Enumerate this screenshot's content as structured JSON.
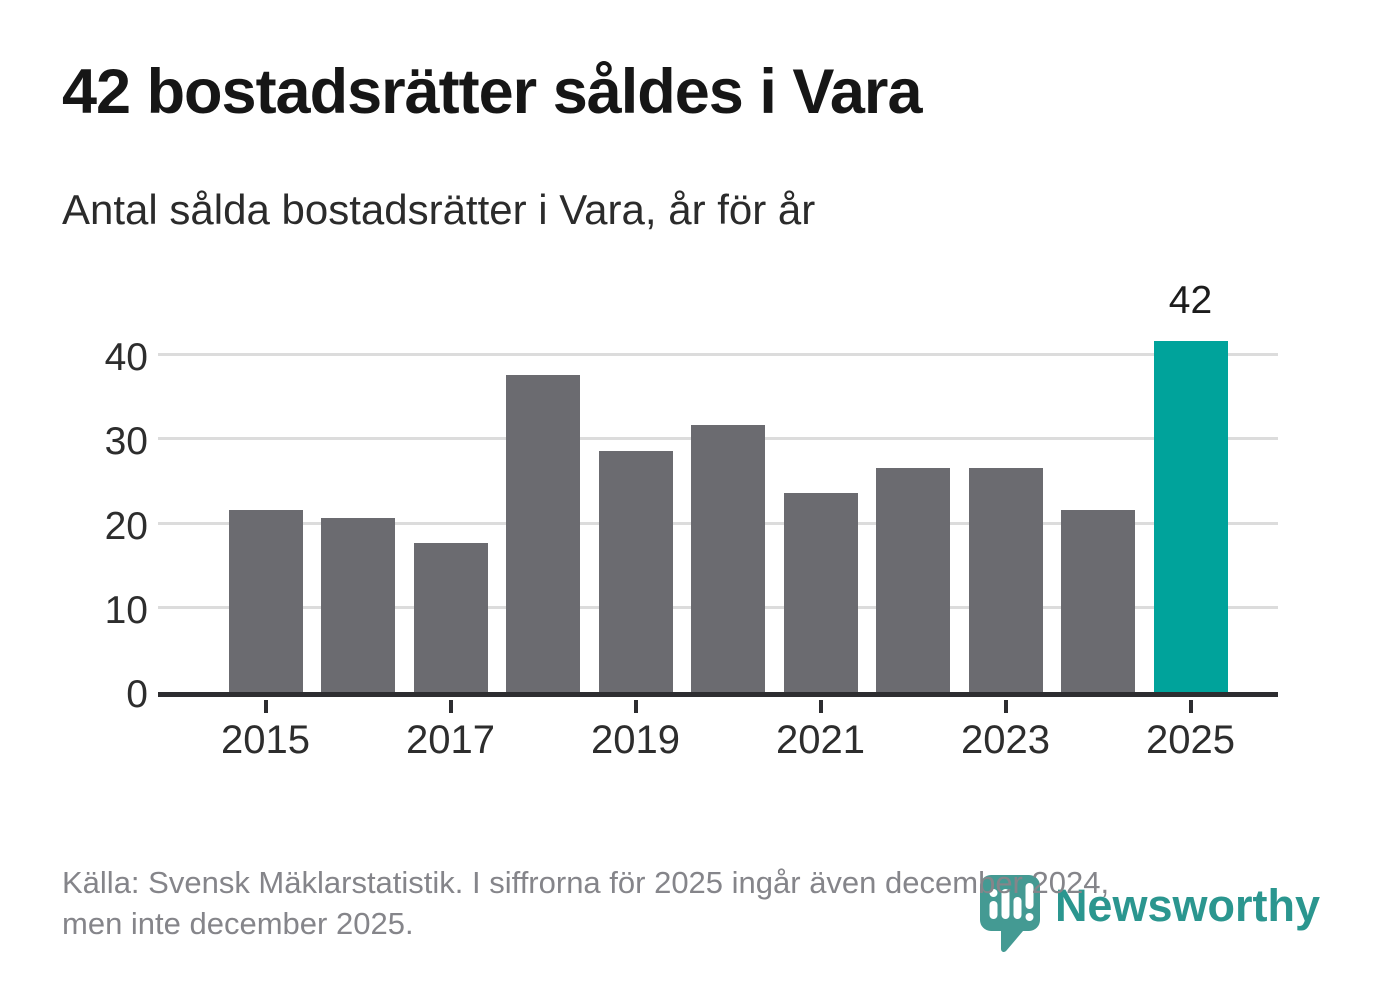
{
  "header": {
    "title": "42 bostadsrätter såldes i Vara",
    "subtitle": "Antal sålda bostadsrätter i Vara, år för år"
  },
  "chart_data": {
    "type": "bar",
    "categories": [
      "2015",
      "2016",
      "2017",
      "2018",
      "2019",
      "2020",
      "2021",
      "2022",
      "2023",
      "2024",
      "2025"
    ],
    "values": [
      22,
      21,
      18,
      38,
      29,
      32,
      24,
      27,
      27,
      22,
      42
    ],
    "highlight": {
      "index": 10,
      "label": "42"
    },
    "title": "42 bostadsrätter såldes i Vara",
    "xlabel": "",
    "ylabel": "",
    "ylim": [
      0,
      40
    ],
    "yticks": [
      0,
      10,
      20,
      30,
      40
    ],
    "xtick_labels": [
      "2015",
      "2017",
      "2019",
      "2021",
      "2023",
      "2025"
    ],
    "grid": "horizontal",
    "legend": "none",
    "colors": {
      "bar": "#6b6b70",
      "highlight": "#00a39b",
      "gridline": "#dcdcdc",
      "axis": "#2d2d30",
      "tick_text": "#2d2d2d",
      "value_label": "#1c1c1c"
    }
  },
  "footer": {
    "source_line1": "Källa: Svensk Mäklarstatistik. I siffrorna för 2025 ingår även december 2024,",
    "source_line2": "men inte december 2025.",
    "brand": {
      "name": "Newsworthy",
      "icon": "newsworthy-pin-barchart-icon",
      "icon_color": "#449a93",
      "text_color": "#2b968f"
    }
  }
}
